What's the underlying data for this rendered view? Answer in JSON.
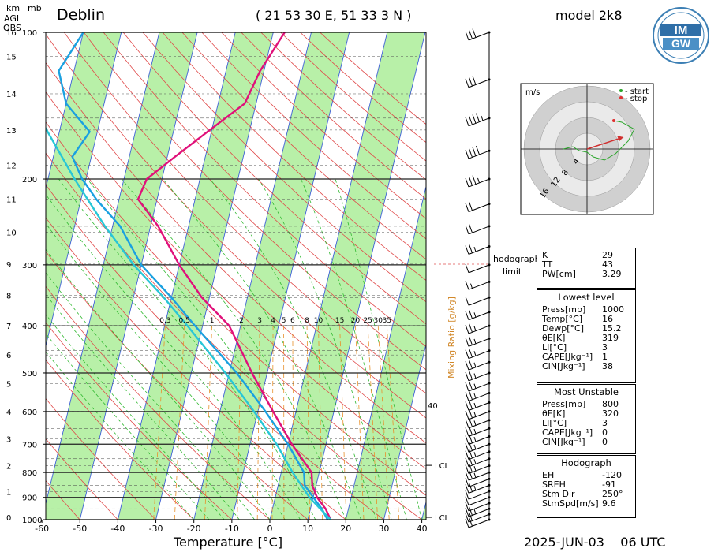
{
  "header": {
    "station": "Deblin",
    "coords": "( 21 53 30  E, 51 33 3 N )",
    "model": "model 2k8",
    "km_label": "km",
    "mb_label": "mb",
    "agl_label": "AGL",
    "obs_label": "OBS",
    "logo_text": "IMGW"
  },
  "footer": {
    "xlabel": "Temperature [°C]",
    "date": "2025-JUN-03",
    "time": "06 UTC"
  },
  "chart_data": {
    "type": "line",
    "title": "Deblin",
    "xlabel": "Temperature [°C]",
    "ylabel": "mb",
    "x_ticks": [
      -60,
      -50,
      -40,
      -30,
      -20,
      -10,
      0,
      10,
      20,
      30,
      40
    ],
    "pressure_ticks": [
      100,
      200,
      300,
      400,
      500,
      600,
      700,
      800,
      900,
      1000
    ],
    "height_ticks_km": [
      0,
      1,
      2,
      3,
      4,
      5,
      6,
      7,
      8,
      9,
      10,
      11,
      12,
      13,
      14,
      15,
      16
    ],
    "mixing_ratio_labels": [
      "0.3",
      "0.5",
      "1",
      "2",
      "3",
      "4",
      "5",
      "6",
      "8",
      "10",
      "15",
      "20",
      "25",
      "30",
      "35"
    ],
    "mixing_ratio_axis": "Mixing Ratio [g/kg]",
    "lcl_label": "LCL",
    "side_value": "40",
    "series": [
      {
        "color": "#e0107a",
        "points": [
          [
            1000,
            16
          ],
          [
            950,
            14
          ],
          [
            900,
            11
          ],
          [
            850,
            9
          ],
          [
            800,
            8
          ],
          [
            700,
            1
          ],
          [
            600,
            -6
          ],
          [
            500,
            -14
          ],
          [
            400,
            -23
          ],
          [
            350,
            -32
          ],
          [
            300,
            -40
          ],
          [
            250,
            -48
          ],
          [
            220,
            -55
          ],
          [
            200,
            -54
          ],
          [
            180,
            -48
          ],
          [
            160,
            -41
          ],
          [
            140,
            -33
          ],
          [
            120,
            -31
          ],
          [
            100,
            -27
          ]
        ]
      },
      {
        "color": "#1aa0e0",
        "points": [
          [
            1000,
            15.2
          ],
          [
            950,
            13
          ],
          [
            900,
            10
          ],
          [
            850,
            7
          ],
          [
            800,
            6
          ],
          [
            700,
            0
          ],
          [
            600,
            -8
          ],
          [
            500,
            -18
          ],
          [
            400,
            -32
          ],
          [
            350,
            -40
          ],
          [
            300,
            -50
          ],
          [
            250,
            -58
          ],
          [
            220,
            -66
          ],
          [
            200,
            -71
          ],
          [
            180,
            -75
          ],
          [
            160,
            -72
          ],
          [
            140,
            -80
          ],
          [
            120,
            -84
          ],
          [
            100,
            -80
          ]
        ]
      },
      {
        "color": "#28c6d6",
        "points": [
          [
            1000,
            16
          ],
          [
            900,
            9
          ],
          [
            800,
            3
          ],
          [
            700,
            -3
          ],
          [
            600,
            -11
          ],
          [
            500,
            -21
          ],
          [
            400,
            -34
          ],
          [
            350,
            -42
          ],
          [
            300,
            -52
          ],
          [
            250,
            -62
          ],
          [
            200,
            -73
          ],
          [
            150,
            -86
          ],
          [
            110,
            -97
          ],
          [
            100,
            -98
          ]
        ]
      }
    ],
    "wind_profile": {
      "pressures_top_to_bottom": [
        100,
        125,
        150,
        175,
        200,
        225,
        250,
        275,
        300,
        325,
        350,
        375,
        400,
        425,
        450,
        475,
        500,
        525,
        550,
        575,
        600,
        625,
        650,
        675,
        700,
        725,
        750,
        775,
        800,
        825,
        850,
        875,
        900,
        925,
        950,
        975,
        1000
      ],
      "speeds_kt": [
        30,
        30,
        35,
        40,
        25,
        20,
        20,
        15,
        10,
        5,
        10,
        15,
        15,
        15,
        15,
        15,
        15,
        15,
        15,
        15,
        15,
        15,
        15,
        15,
        15,
        15,
        15,
        15,
        15,
        10,
        15,
        10,
        10,
        10,
        15,
        20,
        20
      ]
    },
    "hodograph": {
      "unit": "m/s",
      "legend_start": "- start",
      "legend_stop": "- stop",
      "rings": [
        "4",
        "8",
        "12",
        "16"
      ],
      "limit_label_1": "hodograph",
      "limit_label_2": "limit"
    }
  },
  "indices": {
    "general": [
      {
        "k": "K",
        "v": "29"
      },
      {
        "k": "TT",
        "v": "43"
      },
      {
        "k": "PW[cm]",
        "v": "3.29"
      }
    ],
    "lowest": {
      "title": "Lowest level",
      "rows": [
        {
          "k": "Press[mb]",
          "v": "1000"
        },
        {
          "k": "Temp[°C]",
          "v": "16"
        },
        {
          "k": "Dewp[°C]",
          "v": "15.2"
        },
        {
          "k": "θE[K]",
          "v": "319"
        },
        {
          "k": "LI[°C]",
          "v": "3"
        },
        {
          "k": "CAPE[Jkg⁻¹]",
          "v": "1"
        },
        {
          "k": "CIN[Jkg⁻¹]",
          "v": "38"
        }
      ]
    },
    "unstable": {
      "title": "Most Unstable",
      "rows": [
        {
          "k": "Press[mb]",
          "v": "800"
        },
        {
          "k": "θE[K]",
          "v": "320"
        },
        {
          "k": "LI[°C]",
          "v": "3"
        },
        {
          "k": "CAPE[Jkg⁻¹]",
          "v": "0"
        },
        {
          "k": "CIN[Jkg⁻¹]",
          "v": "0"
        }
      ]
    },
    "hodograph": {
      "title": "Hodograph",
      "rows": [
        {
          "k": "EH",
          "v": "-120"
        },
        {
          "k": "SREH",
          "v": "-91"
        },
        {
          "k": "Stm Dir",
          "v": "250°"
        },
        {
          "k": "StmSpd[m/s]",
          "v": "9.6"
        }
      ]
    }
  }
}
